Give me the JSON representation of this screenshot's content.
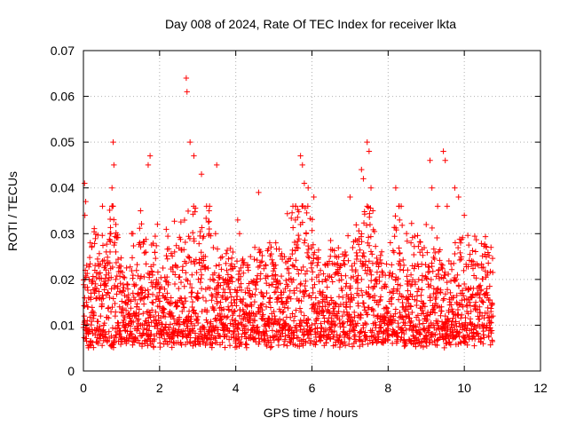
{
  "chart_data": {
    "type": "scatter",
    "title": "Day 008 of 2024, Rate Of TEC Index for receiver lkta",
    "xlabel": "GPS time / hours",
    "ylabel": "ROTI / TECUs",
    "xlim": [
      0,
      12
    ],
    "ylim": [
      0,
      0.07
    ],
    "x_ticks": [
      0,
      2,
      4,
      6,
      8,
      10,
      12
    ],
    "x_tick_labels": [
      "0",
      "2",
      "4",
      "6",
      "8",
      "10",
      "12"
    ],
    "y_ticks": [
      0,
      0.01,
      0.02,
      0.03,
      0.04,
      0.05,
      0.06,
      0.07
    ],
    "y_tick_labels": [
      "0",
      "0.01",
      "0.02",
      "0.03",
      "0.04",
      "0.05",
      "0.06",
      "0.07"
    ],
    "grid": true,
    "marker": "plus",
    "marker_color": "#ff0000",
    "series": [
      {
        "name": "ROTI",
        "description": "dense cloud of ROTI samples from 0 to ~10.75 h, mostly 0.005–0.025 TECU/min",
        "x": [
          0.02,
          0.05,
          0.08,
          0.1,
          0.12,
          0.15,
          0.2,
          0.25,
          0.3,
          0.35,
          0.4,
          0.45,
          0.5,
          0.55,
          0.6,
          0.65,
          0.7,
          0.72,
          0.75,
          0.78,
          0.8,
          0.82,
          0.85,
          0.9,
          0.95,
          1.0,
          1.1,
          1.2,
          1.3,
          1.4,
          1.5,
          1.6,
          1.7,
          1.8,
          1.9,
          2.0,
          2.1,
          2.2,
          2.3,
          2.4,
          2.5,
          2.6,
          2.7,
          2.75,
          2.8,
          2.85,
          2.9,
          3.0,
          3.1,
          3.2,
          3.3,
          3.4,
          3.5,
          3.6,
          3.7,
          3.8,
          3.9,
          4.0,
          4.1,
          4.2,
          4.3,
          4.4,
          4.5,
          4.6,
          4.7,
          4.8,
          4.9,
          5.0,
          5.1,
          5.2,
          5.3,
          5.4,
          5.5,
          5.6,
          5.7,
          5.8,
          5.85,
          5.9,
          6.0,
          6.1,
          6.2,
          6.3,
          6.4,
          6.5,
          6.6,
          6.7,
          6.8,
          6.9,
          7.0,
          7.1,
          7.2,
          7.3,
          7.4,
          7.5,
          7.6,
          7.7,
          7.8,
          7.9,
          8.0,
          8.1,
          8.2,
          8.3,
          8.4,
          8.5,
          8.6,
          8.7,
          8.8,
          8.9,
          9.0,
          9.1,
          9.2,
          9.3,
          9.4,
          9.5,
          9.6,
          9.7,
          9.8,
          9.9,
          10.0,
          10.1,
          10.2,
          10.3,
          10.4,
          10.5,
          10.6,
          10.7,
          10.75,
          0.03,
          0.06,
          0.04,
          0.18,
          0.22,
          0.5,
          0.6,
          0.7,
          0.85,
          1.3,
          1.5,
          1.7,
          1.75,
          2.7,
          2.72,
          2.8,
          2.9,
          3.1,
          3.3,
          3.5,
          4.05,
          4.1,
          4.5,
          4.6,
          5.05,
          5.5,
          5.7,
          5.75,
          5.8,
          5.9,
          6.05,
          7.0,
          7.3,
          7.35,
          7.45,
          7.5,
          7.55,
          7.6,
          8.2,
          8.3,
          8.6,
          9.0,
          9.1,
          9.15,
          9.3,
          9.45,
          9.5,
          9.55,
          9.75,
          9.85,
          10.0,
          10.7
        ],
        "y": [
          0.012,
          0.009,
          0.015,
          0.011,
          0.014,
          0.02,
          0.017,
          0.013,
          0.022,
          0.018,
          0.016,
          0.012,
          0.024,
          0.019,
          0.021,
          0.017,
          0.026,
          0.03,
          0.04,
          0.05,
          0.045,
          0.028,
          0.02,
          0.018,
          0.014,
          0.013,
          0.015,
          0.012,
          0.017,
          0.014,
          0.018,
          0.016,
          0.013,
          0.015,
          0.019,
          0.014,
          0.012,
          0.017,
          0.016,
          0.019,
          0.018,
          0.022,
          0.02,
          0.025,
          0.019,
          0.021,
          0.024,
          0.017,
          0.021,
          0.025,
          0.03,
          0.021,
          0.018,
          0.015,
          0.012,
          0.014,
          0.013,
          0.011,
          0.012,
          0.013,
          0.014,
          0.012,
          0.011,
          0.013,
          0.012,
          0.014,
          0.015,
          0.013,
          0.016,
          0.015,
          0.018,
          0.02,
          0.023,
          0.027,
          0.032,
          0.028,
          0.03,
          0.025,
          0.02,
          0.016,
          0.014,
          0.013,
          0.015,
          0.016,
          0.014,
          0.013,
          0.012,
          0.015,
          0.014,
          0.016,
          0.018,
          0.02,
          0.022,
          0.024,
          0.018,
          0.015,
          0.012,
          0.011,
          0.013,
          0.016,
          0.02,
          0.024,
          0.022,
          0.019,
          0.021,
          0.023,
          0.018,
          0.014,
          0.012,
          0.016,
          0.018,
          0.017,
          0.014,
          0.012,
          0.011,
          0.013,
          0.015,
          0.017,
          0.019,
          0.018,
          0.016,
          0.015,
          0.014,
          0.015,
          0.016,
          0.013,
          0.012,
          0.041,
          0.037,
          0.034,
          0.028,
          0.027,
          0.036,
          0.026,
          0.03,
          0.026,
          0.03,
          0.035,
          0.045,
          0.047,
          0.064,
          0.061,
          0.05,
          0.047,
          0.043,
          0.035,
          0.045,
          0.033,
          0.03,
          0.027,
          0.039,
          0.028,
          0.036,
          0.047,
          0.045,
          0.041,
          0.04,
          0.038,
          0.038,
          0.044,
          0.042,
          0.05,
          0.048,
          0.04,
          0.035,
          0.04,
          0.033,
          0.028,
          0.032,
          0.046,
          0.04,
          0.036,
          0.048,
          0.046,
          0.036,
          0.04,
          0.038,
          0.034,
          0.027
        ]
      }
    ]
  }
}
